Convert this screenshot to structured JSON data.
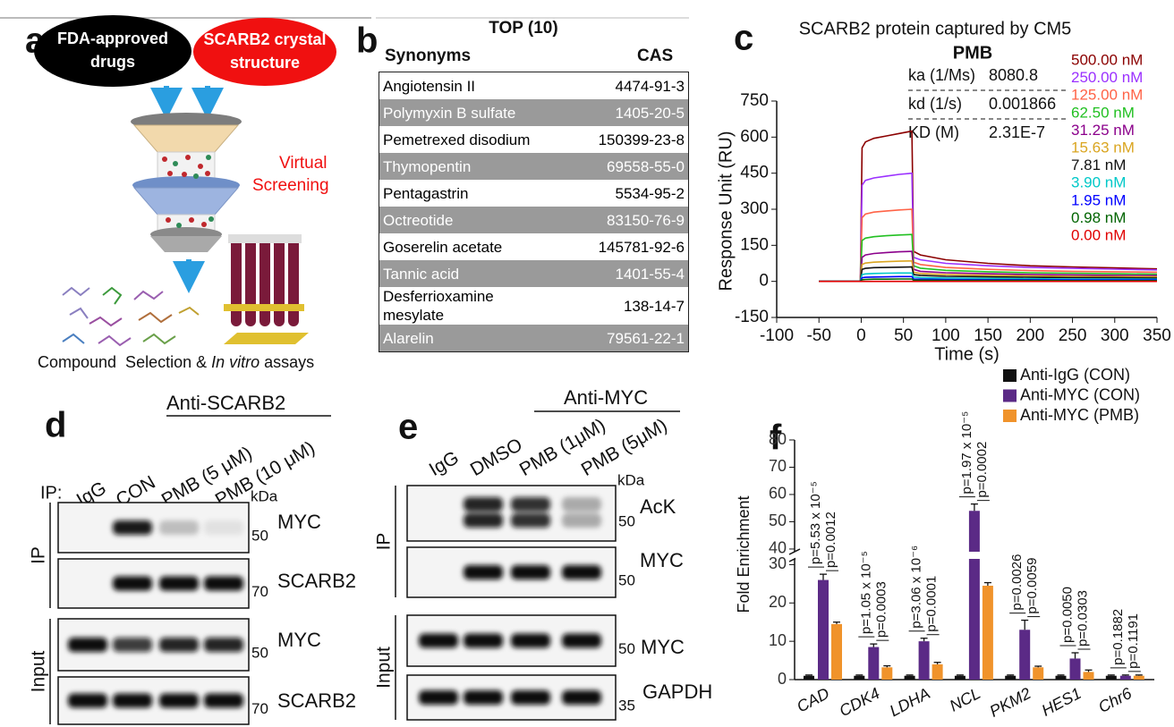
{
  "panel_a": {
    "label": "a",
    "source_1": [
      "FDA-approved",
      "drugs"
    ],
    "source_2": [
      "SCARB2 crystal",
      "structure"
    ],
    "process": [
      "Virtual",
      "Screening"
    ],
    "caption": [
      "Compound  Selection & ",
      "In vitro",
      " assays"
    ]
  },
  "panel_b": {
    "label": "b",
    "title": "TOP (10)",
    "columns": [
      "Synonyms",
      "CAS"
    ],
    "rows": [
      [
        "Angiotensin II",
        "4474-91-3"
      ],
      [
        "Polymyxin B sulfate",
        "1405-20-5"
      ],
      [
        "Pemetrexed disodium",
        "150399-23-8"
      ],
      [
        "Thymopentin",
        "69558-55-0"
      ],
      [
        "Pentagastrin",
        "5534-95-2"
      ],
      [
        "Octreotide",
        "83150-76-9"
      ],
      [
        "Goserelin acetate",
        "145781-92-6"
      ],
      [
        "Tannic acid",
        "1401-55-4"
      ],
      [
        "Desferrioxamine\n mesylate",
        "138-14-7"
      ],
      [
        "Alarelin",
        "79561-22-1"
      ]
    ]
  },
  "chart_data": [
    {
      "type": "line",
      "panel_label": "c",
      "title": "SCARB2 protein captured by CM5",
      "subtitle": "PMB",
      "x_label": "Time (s)",
      "y_label": "Response Unit (RU)",
      "xlim": [
        -100,
        350
      ],
      "xticks": [
        -100,
        -50,
        0,
        50,
        100,
        150,
        200,
        250,
        300,
        350
      ],
      "ylim": [
        -150,
        750
      ],
      "yticks": [
        -150,
        0,
        150,
        300,
        450,
        600,
        750
      ],
      "kinetics": [
        {
          "parameter": "ka (1/Ms)",
          "value": "8080.8"
        },
        {
          "parameter": "kd (1/s)",
          "value": "0.001866"
        },
        {
          "parameter": "KD (M)",
          "value": "2.31E-7"
        }
      ],
      "x": [
        -50,
        -1,
        1,
        5,
        15,
        30,
        45,
        60,
        62,
        70,
        100,
        150,
        200,
        250,
        300,
        350
      ],
      "series": [
        {
          "name": "500.00 nM",
          "color": "#8b0000",
          "values": [
            0,
            0,
            555,
            580,
            595,
            605,
            615,
            625,
            125,
            110,
            90,
            75,
            65,
            60,
            56,
            52
          ]
        },
        {
          "name": "250.00 nM",
          "color": "#9b30ff",
          "values": [
            0,
            0,
            400,
            420,
            430,
            438,
            445,
            450,
            100,
            90,
            75,
            65,
            58,
            54,
            51,
            48
          ]
        },
        {
          "name": "125.00 nM",
          "color": "#ff6347",
          "values": [
            0,
            0,
            265,
            280,
            288,
            293,
            297,
            300,
            80,
            70,
            58,
            50,
            45,
            42,
            40,
            38
          ]
        },
        {
          "name": "62.50 nM",
          "color": "#22c022",
          "values": [
            0,
            0,
            170,
            180,
            186,
            190,
            193,
            195,
            65,
            55,
            46,
            40,
            36,
            34,
            32,
            30
          ]
        },
        {
          "name": "31.25 nM",
          "color": "#8b008b",
          "values": [
            0,
            0,
            100,
            110,
            116,
            120,
            123,
            125,
            50,
            42,
            36,
            32,
            29,
            27,
            25,
            24
          ]
        },
        {
          "name": "15.63 nM",
          "color": "#daa520",
          "values": [
            0,
            0,
            70,
            76,
            80,
            82,
            84,
            85,
            38,
            33,
            28,
            25,
            23,
            21,
            20,
            19
          ]
        },
        {
          "name": "7.81 nM",
          "color": "#111111",
          "values": [
            0,
            0,
            50,
            54,
            57,
            58,
            59,
            60,
            28,
            25,
            21,
            19,
            17,
            16,
            15,
            14
          ]
        },
        {
          "name": "3.90 nM",
          "color": "#00c8c8",
          "values": [
            0,
            0,
            28,
            31,
            33,
            34,
            35,
            35,
            18,
            16,
            14,
            12,
            11,
            10,
            10,
            9
          ]
        },
        {
          "name": "1.95 nM",
          "color": "#0000ff",
          "values": [
            0,
            0,
            15,
            17,
            18,
            19,
            20,
            20,
            10,
            9,
            8,
            7,
            7,
            6,
            6,
            6
          ]
        },
        {
          "name": "0.98 nM",
          "color": "#006400",
          "values": [
            0,
            0,
            7,
            8,
            9,
            9,
            10,
            10,
            5,
            5,
            4,
            4,
            4,
            3,
            3,
            3
          ]
        },
        {
          "name": "0.00 nM",
          "color": "#e00000",
          "values": [
            0,
            0,
            0,
            0,
            0,
            0,
            0,
            0,
            0,
            0,
            0,
            0,
            0,
            0,
            0,
            0
          ]
        }
      ]
    },
    {
      "type": "bar",
      "panel_label": "f",
      "y_label": "Fold Enrichment",
      "categories": [
        "CAD",
        "CDK4",
        "LDHA",
        "NCL",
        "PKM2",
        "HES1",
        "Chr6"
      ],
      "ylim": [
        0,
        80
      ],
      "yticks": [
        0,
        10,
        20,
        30,
        40,
        50,
        60,
        70,
        80
      ],
      "axis_break": [
        31.5,
        39
      ],
      "series": [
        {
          "name": "Anti-IgG (CON)",
          "color": "#111111",
          "values": [
            1,
            1,
            1,
            1,
            1,
            1,
            1
          ],
          "errors": [
            0.2,
            0.2,
            0.2,
            0.2,
            0.2,
            0.2,
            0.2
          ]
        },
        {
          "name": "Anti-MYC (CON)",
          "color": "#5b2a86",
          "values": [
            26,
            8.5,
            10,
            54,
            13,
            5.5,
            1
          ],
          "errors": [
            1.5,
            0.8,
            0.8,
            2.5,
            2.5,
            1.5,
            0.2
          ]
        },
        {
          "name": "Anti-MYC (PMB)",
          "color": "#f0932b",
          "values": [
            14.5,
            3.2,
            4,
            24.5,
            3.2,
            2,
            1
          ],
          "errors": [
            0.5,
            0.4,
            0.5,
            0.8,
            0.3,
            0.5,
            0.2
          ]
        }
      ],
      "p_values": [
        [
          "p=5.53 x 10⁻⁵",
          "p=0.0012"
        ],
        [
          "p=1.05 x 10⁻⁵",
          "p=0.0003"
        ],
        [
          "p=3.06 x 10⁻⁶",
          "p=0.0001"
        ],
        [
          "p=1.97 x 10⁻⁵",
          "p=0.0002"
        ],
        [
          "p=0.0026",
          "p=0.0059"
        ],
        [
          "p=0.0050",
          "p=0.0303"
        ],
        [
          "p=0.1882",
          "p=0.1191"
        ]
      ]
    }
  ],
  "panel_d": {
    "label": "d",
    "antibody": "Anti-SCARB2",
    "ip_label": "IP:",
    "lanes": [
      "IgG",
      "CON",
      "PMB (5 μM)",
      "PMB (10 μM)"
    ],
    "unit": "kDa",
    "groups": [
      "IP",
      "Input"
    ],
    "rows": [
      {
        "protein": "MYC",
        "marker": 50
      },
      {
        "protein": "SCARB2",
        "marker": 70
      },
      {
        "protein": "MYC",
        "marker": 50
      },
      {
        "protein": "SCARB2",
        "marker": 70
      }
    ]
  },
  "panel_e": {
    "label": "e",
    "antibody": "Anti-MYC",
    "lanes": [
      "IgG",
      "DMSO",
      "PMB (1μM)",
      "PMB (5μM)"
    ],
    "unit": "kDa",
    "groups": [
      "IP",
      "Input"
    ],
    "rows": [
      {
        "protein": "AcK",
        "marker": 50
      },
      {
        "protein": "MYC",
        "marker": 50
      },
      {
        "protein": "MYC",
        "marker": 50
      },
      {
        "protein": "GAPDH",
        "marker": 35
      }
    ]
  }
}
